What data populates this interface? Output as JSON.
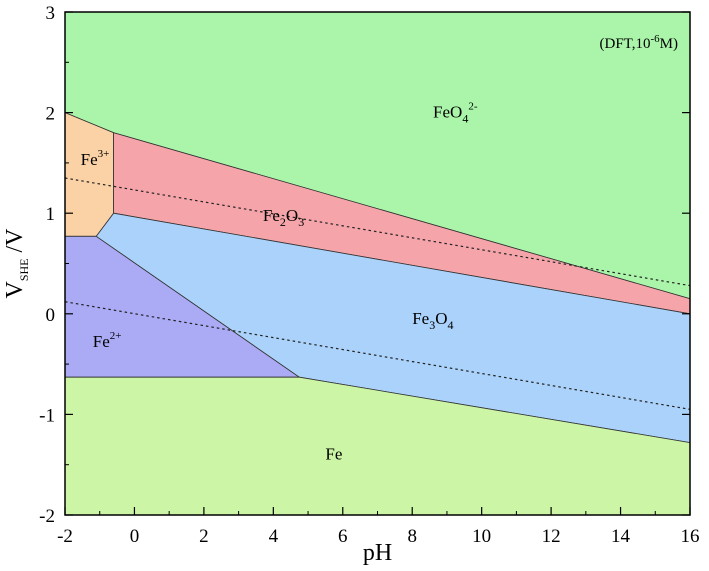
{
  "chart_data": {
    "type": "area",
    "title": "",
    "annotation": {
      "main": "(DFT,10",
      "sup": "-6",
      "tail": "M)"
    },
    "xlabel": "pH",
    "ylabel": {
      "main": "V",
      "sub": "SHE",
      "tail": " /V"
    },
    "xlim": [
      -2,
      16
    ],
    "ylim": [
      -2,
      3
    ],
    "xticks": [
      "-2",
      "0",
      "2",
      "4",
      "6",
      "8",
      "10",
      "12",
      "14",
      "16"
    ],
    "yticks": [
      "-2",
      "-1",
      "0",
      "1",
      "2",
      "3"
    ],
    "grid": false,
    "regions": [
      {
        "name": "FeO4 2-",
        "label": "FeO",
        "sub": "4",
        "sup": "2-",
        "label_pos": [
          8.6,
          1.95
        ],
        "color": "#aaf5aa",
        "points": [
          [
            -2,
            3
          ],
          [
            16,
            3
          ],
          [
            16,
            0.15
          ],
          [
            -0.6,
            1.8
          ],
          [
            -2,
            2.0
          ]
        ]
      },
      {
        "name": "Fe3+",
        "label": "Fe",
        "sub": "",
        "sup": "3+",
        "label_pos": [
          -1.55,
          1.48
        ],
        "color": "#fad2a5",
        "points": [
          [
            -2,
            2.0
          ],
          [
            -0.6,
            1.8
          ],
          [
            -0.6,
            1.0
          ],
          [
            -1.1,
            0.77
          ],
          [
            -2,
            0.77
          ]
        ]
      },
      {
        "name": "Fe2O3",
        "label": "Fe",
        "sub": "2",
        "sup": "",
        "tail": "O",
        "sub2": "3",
        "label_pos": [
          3.7,
          0.92
        ],
        "color": "#f5a5aa",
        "points": [
          [
            -0.6,
            1.8
          ],
          [
            16,
            0.15
          ],
          [
            16,
            0.0
          ],
          [
            -0.6,
            1.0
          ]
        ]
      },
      {
        "name": "Fe2+",
        "label": "Fe",
        "sub": "",
        "sup": "2+",
        "label_pos": [
          -1.2,
          -0.33
        ],
        "color": "#aaaaf5",
        "points": [
          [
            -2,
            0.77
          ],
          [
            -1.1,
            0.77
          ],
          [
            4.75,
            -0.63
          ],
          [
            -2,
            -0.63
          ]
        ]
      },
      {
        "name": "Fe3O4",
        "label": "Fe",
        "sub": "3",
        "sup": "",
        "tail": "O",
        "sub2": "4",
        "label_pos": [
          8.0,
          -0.1
        ],
        "color": "#aad2fa",
        "points": [
          [
            -0.6,
            1.0
          ],
          [
            16,
            0.0
          ],
          [
            16,
            -1.28
          ],
          [
            4.75,
            -0.63
          ],
          [
            -1.1,
            0.77
          ]
        ]
      },
      {
        "name": "Fe",
        "label": "Fe",
        "sub": "",
        "sup": "",
        "label_pos": [
          5.5,
          -1.45
        ],
        "color": "#ccf5a5",
        "points": [
          [
            -2,
            -0.63
          ],
          [
            4.75,
            -0.63
          ],
          [
            16,
            -1.28
          ],
          [
            16,
            -2
          ],
          [
            -2,
            -2
          ]
        ]
      }
    ],
    "water_lines": [
      {
        "name": "O2/H2O",
        "x": [
          -2,
          16
        ],
        "y": [
          1.35,
          0.28
        ]
      },
      {
        "name": "H+/H2",
        "x": [
          -2,
          16
        ],
        "y": [
          0.12,
          -0.95
        ]
      }
    ]
  }
}
